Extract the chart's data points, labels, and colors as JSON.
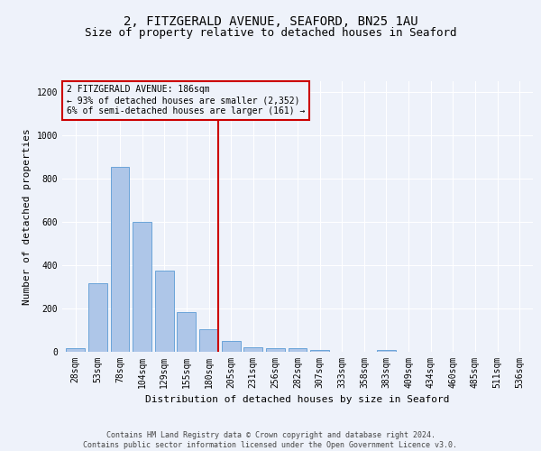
{
  "title": "2, FITZGERALD AVENUE, SEAFORD, BN25 1AU",
  "subtitle": "Size of property relative to detached houses in Seaford",
  "xlabel": "Distribution of detached houses by size in Seaford",
  "ylabel": "Number of detached properties",
  "categories": [
    "28sqm",
    "53sqm",
    "78sqm",
    "104sqm",
    "129sqm",
    "155sqm",
    "180sqm",
    "205sqm",
    "231sqm",
    "256sqm",
    "282sqm",
    "307sqm",
    "333sqm",
    "358sqm",
    "383sqm",
    "409sqm",
    "434sqm",
    "460sqm",
    "485sqm",
    "511sqm",
    "536sqm"
  ],
  "bar_heights": [
    18,
    318,
    855,
    598,
    375,
    185,
    105,
    48,
    22,
    18,
    18,
    10,
    0,
    0,
    10,
    0,
    0,
    0,
    0,
    0,
    0
  ],
  "bar_color": "#aec6e8",
  "bar_edgecolor": "#5b9bd5",
  "vline_x_index": 6,
  "vline_color": "#cc0000",
  "ylim": [
    0,
    1250
  ],
  "yticks": [
    0,
    200,
    400,
    600,
    800,
    1000,
    1200
  ],
  "annotation_text": "2 FITZGERALD AVENUE: 186sqm\n← 93% of detached houses are smaller (2,352)\n6% of semi-detached houses are larger (161) →",
  "annotation_box_color": "#cc0000",
  "footer_line1": "Contains HM Land Registry data © Crown copyright and database right 2024.",
  "footer_line2": "Contains public sector information licensed under the Open Government Licence v3.0.",
  "background_color": "#eef2fa",
  "grid_color": "#ffffff",
  "title_fontsize": 10,
  "subtitle_fontsize": 9,
  "xlabel_fontsize": 8,
  "ylabel_fontsize": 8,
  "tick_fontsize": 7,
  "ann_fontsize": 7,
  "footer_fontsize": 6
}
